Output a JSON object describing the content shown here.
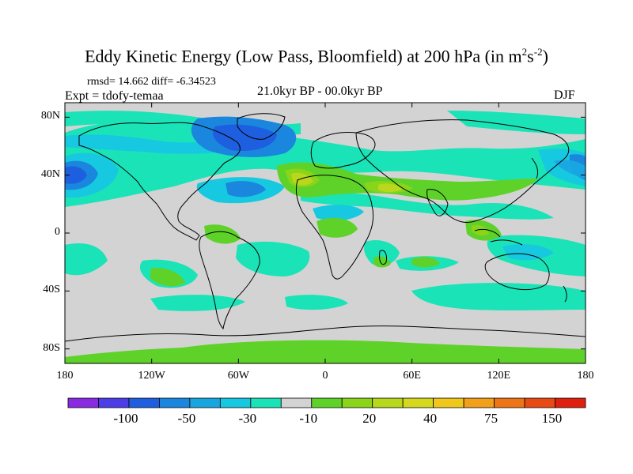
{
  "title_main": "Eddy Kinetic Energy (Low Pass, Bloomfield) at 200 hPa (in m",
  "title_exp1": "2",
  "title_mid": "s",
  "title_exp2": "-2",
  "title_end": ")",
  "stats": "rmsd= 14.662 diff= -6.34523",
  "experiment": "Expt = tdofy-temaa",
  "period": "21.0kyr BP - 00.0kyr BP",
  "season": "DJF",
  "colors": {
    "background": "#d3d3d3",
    "levels": [
      "#8a2be2",
      "#4b3ee6",
      "#1e5fe0",
      "#1a86de",
      "#19a6e0",
      "#16c9e0",
      "#1ae3b8",
      "#d3d3d3",
      "#5fd22a",
      "#8ad41a",
      "#b7d81c",
      "#d6d820",
      "#f0c81c",
      "#f2a01c",
      "#ee7418",
      "#e84a14",
      "#e0200e"
    ]
  },
  "chart_data": {
    "type": "heatmap",
    "x_ticks": [
      "180",
      "120W",
      "60W",
      "0",
      "60E",
      "120E",
      "180"
    ],
    "y_ticks": [
      "80N",
      "40N",
      "0",
      "40S",
      "80S"
    ],
    "x_range": [
      -180,
      180
    ],
    "y_range": [
      -90,
      90
    ],
    "colorbar_labels": [
      "-100",
      "-50",
      "-30",
      "-10",
      "20",
      "40",
      "75",
      "150"
    ],
    "colorbar_boundaries": [
      -150,
      -100,
      -75,
      -50,
      -40,
      -30,
      -20,
      -10,
      10,
      20,
      30,
      40,
      50,
      75,
      100,
      150
    ]
  }
}
